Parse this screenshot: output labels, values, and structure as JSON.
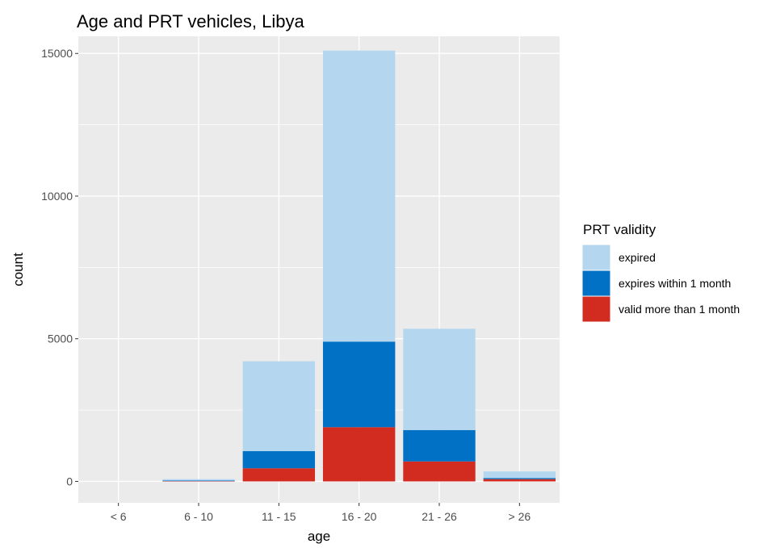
{
  "chart_data": {
    "type": "bar",
    "stacked": true,
    "title": "Age and PRT vehicles, Libya",
    "xlabel": "age",
    "ylabel": "count",
    "categories": [
      "< 6",
      "6 - 10",
      "11 - 15",
      "16 - 20",
      "21 - 26",
      "> 26"
    ],
    "ylim": [
      -750,
      15600
    ],
    "yticks": [
      0,
      5000,
      10000,
      15000
    ],
    "ytick_labels": [
      "0",
      "5000",
      "10000",
      "15000"
    ],
    "grid": true,
    "legend": {
      "title": "PRT validity",
      "position": "right"
    },
    "series": [
      {
        "name": "valid more than 1 month",
        "color": "#d22b1f",
        "values": [
          0,
          10,
          460,
          1900,
          700,
          80
        ]
      },
      {
        "name": "expires within 1 month",
        "color": "#0071c5",
        "values": [
          0,
          20,
          600,
          3000,
          1100,
          40
        ]
      },
      {
        "name": "expired",
        "color": "#b4d7ef",
        "values": [
          0,
          50,
          3150,
          10200,
          3550,
          230
        ]
      }
    ],
    "legend_order": [
      "expired",
      "expires within 1 month",
      "valid more than 1 month"
    ]
  }
}
